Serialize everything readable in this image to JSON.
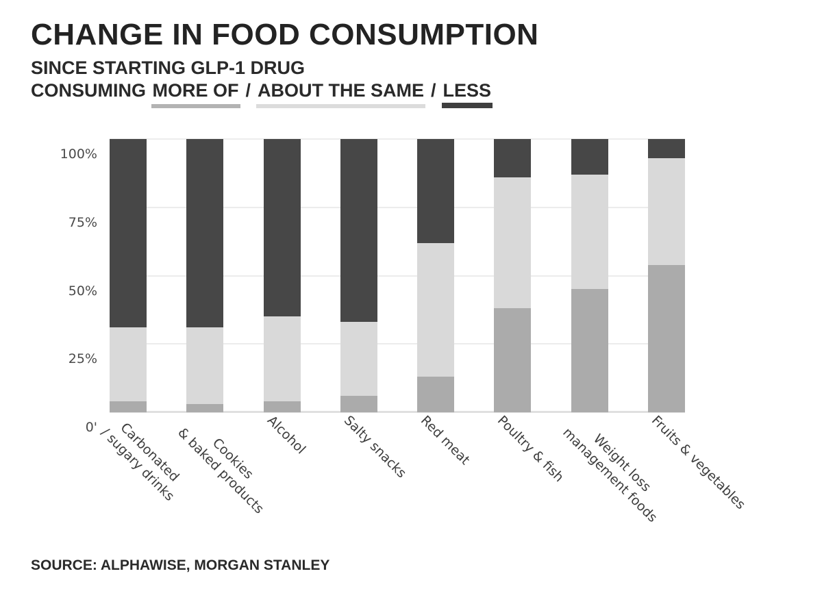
{
  "header": {
    "title": "CHANGE IN FOOD CONSUMPTION",
    "subtitle": "SINCE STARTING GLP-1 DRUG",
    "legend_prefix": "CONSUMING",
    "legend_separator": "/",
    "legend_items": [
      {
        "key": "more",
        "label": "MORE OF",
        "underline_color": "#b3b3b3"
      },
      {
        "key": "same",
        "label": "ABOUT THE SAME",
        "underline_color": "#dcdcdc"
      },
      {
        "key": "less",
        "label": "LESS",
        "underline_color": "#3f3f3f"
      }
    ]
  },
  "chart_data": {
    "type": "bar",
    "stacked": true,
    "title": "CHANGE IN FOOD CONSUMPTION SINCE STARTING GLP-1 DRUG",
    "categories": [
      [
        "Carbonated",
        "/ sugary drinks"
      ],
      [
        "Cookies",
        "& baked products"
      ],
      [
        "Alcohol"
      ],
      [
        "Salty snacks"
      ],
      [
        "Red meat"
      ],
      [
        "Poultry & fish"
      ],
      [
        "Weight loss",
        "management foods"
      ],
      [
        "Fruits & vegetables"
      ]
    ],
    "series": [
      {
        "name": "More of",
        "color": "#ababab",
        "values": [
          4,
          3,
          4,
          6,
          13,
          38,
          45,
          54
        ]
      },
      {
        "name": "About the same",
        "color": "#d9d9d9",
        "values": [
          27,
          28,
          31,
          27,
          49,
          48,
          42,
          39
        ]
      },
      {
        "name": "Less",
        "color": "#474747",
        "values": [
          69,
          69,
          65,
          67,
          38,
          14,
          13,
          7
        ]
      }
    ],
    "y_ticks": [
      "100%",
      "75%",
      "50%",
      "25%",
      "0'"
    ],
    "y_tick_values": [
      100,
      75,
      50,
      25,
      0
    ],
    "ylim": [
      0,
      100
    ],
    "grid": true,
    "legend_position": "top"
  },
  "footer": {
    "source": "SOURCE: ALPHAWISE, MORGAN STANLEY"
  }
}
